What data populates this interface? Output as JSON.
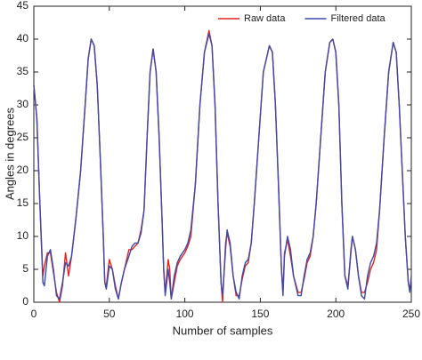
{
  "chart_data": {
    "type": "line",
    "xlabel": "Number of samples",
    "ylabel": "Angles in degrees",
    "x": [
      0,
      2,
      4,
      6,
      7,
      9,
      11,
      13,
      15,
      17,
      19,
      21,
      23,
      25,
      28,
      31,
      34,
      36,
      38,
      40,
      42,
      44,
      46,
      47,
      48,
      50,
      52,
      54,
      56,
      58,
      60,
      63,
      65,
      67,
      69,
      71,
      73,
      75,
      77,
      79,
      81,
      83,
      85,
      86,
      87,
      89,
      90,
      91,
      93,
      95,
      97,
      100,
      102,
      104,
      107,
      110,
      113,
      116,
      118,
      120,
      122,
      124,
      125,
      127,
      128,
      130,
      132,
      134,
      136,
      138,
      140,
      142,
      144,
      146,
      149,
      152,
      156,
      158,
      160,
      162,
      164,
      165,
      166,
      168,
      170,
      172,
      175,
      177,
      179,
      181,
      183,
      185,
      187,
      190,
      193,
      196,
      198,
      200,
      202,
      204,
      206,
      208,
      210,
      211,
      213,
      215,
      217,
      219,
      221,
      223,
      225,
      227,
      229,
      232,
      235,
      238,
      240,
      242,
      244,
      246,
      248,
      249,
      250
    ],
    "series": [
      {
        "name": "Raw data",
        "color": "#e3231f",
        "values": [
          33,
          28,
          15,
          4,
          5.5,
          7.5,
          7.5,
          4.5,
          1.5,
          0,
          2.5,
          7.5,
          4,
          7,
          13,
          20,
          30,
          37,
          40,
          39,
          33,
          22,
          10,
          3,
          2.5,
          6.5,
          5,
          2.5,
          0.5,
          3,
          5,
          8,
          8,
          8.5,
          9,
          11,
          14,
          25,
          35,
          38.5,
          35,
          25,
          12,
          5,
          1.5,
          6.5,
          5,
          0.5,
          3,
          5.5,
          6.5,
          7.5,
          8.5,
          10,
          18,
          30,
          38,
          41.3,
          39,
          30,
          15,
          3,
          0,
          9,
          10.5,
          8.5,
          4,
          1,
          1,
          3.5,
          5.5,
          6,
          9,
          15,
          25,
          35,
          39,
          38,
          30,
          18,
          5,
          1.5,
          7.5,
          9.5,
          7,
          4,
          1.5,
          1.5,
          3.5,
          6,
          7,
          10,
          15,
          25,
          35,
          39.5,
          40,
          38,
          30,
          15,
          4,
          2.5,
          7.5,
          10,
          8,
          4,
          1.5,
          1.5,
          3,
          5,
          6,
          8,
          14,
          25,
          35,
          39.5,
          38,
          30,
          20,
          10,
          3,
          2,
          3.5
        ]
      },
      {
        "name": "Filtered data",
        "color": "#3a4aae",
        "values": [
          33,
          28,
          15,
          3,
          2.5,
          7,
          8,
          5,
          1,
          0.5,
          3,
          6,
          5.5,
          7,
          13,
          20,
          30,
          37,
          40,
          39,
          33,
          22,
          10,
          3,
          2,
          5.5,
          5,
          2,
          0.5,
          3,
          5,
          7,
          8.5,
          9,
          9,
          10.5,
          14,
          25,
          35,
          38.5,
          35,
          25,
          12,
          5,
          1,
          5,
          3,
          0.5,
          4,
          6,
          7,
          8,
          9,
          11,
          18,
          30,
          38,
          40.8,
          39,
          30,
          15,
          3,
          1,
          8,
          11,
          9,
          4,
          1.5,
          0.5,
          4,
          6,
          6.5,
          9,
          15,
          25,
          35,
          39,
          38,
          30,
          18,
          5,
          1,
          7,
          10,
          8,
          4,
          1,
          1,
          4,
          6.5,
          7.5,
          10,
          15,
          25,
          35,
          39.5,
          40,
          38,
          30,
          15,
          4,
          2,
          8,
          10,
          8,
          4,
          1,
          0.5,
          4,
          6,
          7,
          9,
          14,
          25,
          35,
          39.5,
          38,
          30,
          20,
          10,
          3,
          1.5,
          4
        ]
      }
    ],
    "xlim": [
      0,
      250
    ],
    "xticks": [
      0,
      50,
      100,
      150,
      200,
      250
    ],
    "ylim": [
      0,
      45
    ],
    "yticks": [
      0,
      5,
      10,
      15,
      20,
      25,
      30,
      35,
      40,
      45
    ],
    "legend": "upper right"
  }
}
